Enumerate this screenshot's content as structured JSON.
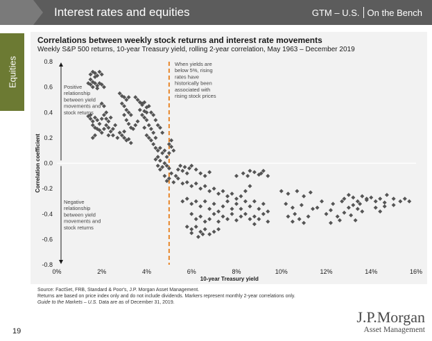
{
  "header": {
    "title": "Interest rates and equities",
    "right_label": "GTM – U.S.",
    "right_sublabel": "On the Bench"
  },
  "side_tab": {
    "label": "Equities"
  },
  "footnote": {
    "line1": "Source: FactSet, FRB, Standard & Poor's, J.P. Morgan Asset Management.",
    "line2": "Returns are based on price index only and do not include dividends. Markers represent monthly 2-year correlations only.",
    "line3_italic": "Guide to the Markets – U.S.",
    "line3_rest": " Data are as of December 31, 2019."
  },
  "page_number": "19",
  "logo": {
    "main": "J.P.Morgan",
    "sub": "Asset Management"
  },
  "colors": {
    "marker": "#555555",
    "threshold": "#e8862a",
    "header": "#5c5c5c",
    "tab": "#6c7a33"
  },
  "chart_data": {
    "type": "scatter",
    "title": "Correlations between weekly stock returns and interest rate movements",
    "subtitle": "Weekly S&P 500 returns, 10-year Treasury yield, rolling 2-year correlation, May 1963 – December 2019",
    "xlabel": "10-year Treasury yield",
    "ylabel": "Correlation coefficient",
    "xlim": [
      0,
      16
    ],
    "ylim": [
      -0.8,
      0.8
    ],
    "xticks": [
      "0%",
      "2%",
      "4%",
      "6%",
      "8%",
      "10%",
      "12%",
      "14%",
      "16%"
    ],
    "yticks": [
      "0.8",
      "0.6",
      "0.4",
      "0.2",
      "0.0",
      "-0.2",
      "-0.4",
      "-0.6",
      "-0.8"
    ],
    "threshold_x": 5,
    "annotations": {
      "threshold": "When yields are below 5%, rising rates have historically been associated with rising stock prices",
      "positive": "Positive relationship between yield movements and stock returns",
      "negative": "Negative relationship between yield movements and stock returns"
    },
    "points": [
      [
        1.5,
        0.7
      ],
      [
        1.6,
        0.72
      ],
      [
        1.7,
        0.71
      ],
      [
        1.8,
        0.69
      ],
      [
        1.9,
        0.72
      ],
      [
        2.0,
        0.7
      ],
      [
        1.7,
        0.68
      ],
      [
        1.5,
        0.66
      ],
      [
        1.4,
        0.63
      ],
      [
        1.5,
        0.62
      ],
      [
        1.6,
        0.64
      ],
      [
        1.7,
        0.63
      ],
      [
        1.8,
        0.61
      ],
      [
        1.9,
        0.63
      ],
      [
        2.0,
        0.62
      ],
      [
        2.1,
        0.6
      ],
      [
        1.6,
        0.6
      ],
      [
        1.8,
        0.59
      ],
      [
        1.4,
        0.37
      ],
      [
        1.5,
        0.35
      ],
      [
        1.5,
        0.38
      ],
      [
        1.6,
        0.33
      ],
      [
        1.7,
        0.36
      ],
      [
        1.8,
        0.34
      ],
      [
        1.9,
        0.31
      ],
      [
        2.0,
        0.35
      ],
      [
        1.6,
        0.3
      ],
      [
        1.7,
        0.28
      ],
      [
        1.8,
        0.27
      ],
      [
        1.9,
        0.26
      ],
      [
        2.0,
        0.24
      ],
      [
        1.7,
        0.22
      ],
      [
        1.6,
        0.2
      ],
      [
        2.0,
        0.47
      ],
      [
        2.1,
        0.45
      ],
      [
        2.2,
        0.4
      ],
      [
        2.1,
        0.38
      ],
      [
        2.2,
        0.35
      ],
      [
        2.3,
        0.33
      ],
      [
        2.4,
        0.36
      ],
      [
        2.2,
        0.3
      ],
      [
        2.3,
        0.28
      ],
      [
        2.4,
        0.25
      ],
      [
        2.5,
        0.27
      ],
      [
        2.6,
        0.3
      ],
      [
        2.5,
        0.22
      ],
      [
        2.7,
        0.2
      ],
      [
        2.8,
        0.24
      ],
      [
        2.9,
        0.22
      ],
      [
        3.0,
        0.25
      ],
      [
        2.1,
        0.27
      ],
      [
        2.3,
        0.22
      ],
      [
        2.8,
        0.55
      ],
      [
        2.9,
        0.53
      ],
      [
        3.0,
        0.52
      ],
      [
        3.1,
        0.5
      ],
      [
        3.2,
        0.52
      ],
      [
        2.9,
        0.47
      ],
      [
        3.0,
        0.45
      ],
      [
        3.1,
        0.42
      ],
      [
        3.2,
        0.4
      ],
      [
        3.3,
        0.38
      ],
      [
        3.0,
        0.38
      ],
      [
        3.1,
        0.34
      ],
      [
        3.2,
        0.31
      ],
      [
        3.3,
        0.28
      ],
      [
        3.4,
        0.27
      ],
      [
        3.5,
        0.3
      ],
      [
        3.6,
        0.33
      ],
      [
        3.0,
        0.2
      ],
      [
        3.1,
        0.18
      ],
      [
        3.2,
        0.19
      ],
      [
        3.3,
        0.16
      ],
      [
        3.5,
        0.52
      ],
      [
        3.6,
        0.5
      ],
      [
        3.7,
        0.48
      ],
      [
        3.8,
        0.46
      ],
      [
        3.9,
        0.48
      ],
      [
        4.0,
        0.44
      ],
      [
        3.7,
        0.42
      ],
      [
        3.8,
        0.38
      ],
      [
        3.9,
        0.36
      ],
      [
        4.0,
        0.34
      ],
      [
        4.1,
        0.3
      ],
      [
        4.2,
        0.27
      ],
      [
        3.9,
        0.28
      ],
      [
        4.0,
        0.22
      ],
      [
        4.1,
        0.2
      ],
      [
        4.2,
        0.18
      ],
      [
        4.3,
        0.24
      ],
      [
        4.4,
        0.2
      ],
      [
        3.8,
        0.47
      ],
      [
        3.9,
        0.41
      ],
      [
        4.0,
        0.4
      ],
      [
        4.1,
        0.45
      ],
      [
        4.2,
        0.4
      ],
      [
        4.3,
        0.38
      ],
      [
        4.4,
        0.34
      ],
      [
        4.5,
        0.3
      ],
      [
        4.6,
        0.28
      ],
      [
        4.7,
        0.24
      ],
      [
        4.3,
        0.15
      ],
      [
        4.4,
        0.12
      ],
      [
        4.5,
        0.1
      ],
      [
        4.6,
        0.12
      ],
      [
        4.7,
        0.08
      ],
      [
        4.8,
        0.1
      ],
      [
        4.9,
        0.05
      ],
      [
        5.0,
        0.08
      ],
      [
        4.5,
        0.05
      ],
      [
        4.6,
        0.02
      ],
      [
        4.8,
        0.0
      ],
      [
        4.9,
        -0.02
      ],
      [
        5.0,
        -0.04
      ],
      [
        4.6,
        -0.05
      ],
      [
        4.7,
        -0.03
      ],
      [
        4.5,
        -0.02
      ],
      [
        4.4,
        0.03
      ],
      [
        5.0,
        0.15
      ],
      [
        5.1,
        0.13
      ],
      [
        5.1,
        0.18
      ],
      [
        5.2,
        0.1
      ],
      [
        4.8,
        -0.1
      ],
      [
        4.9,
        -0.14
      ],
      [
        5.0,
        -0.12
      ],
      [
        5.1,
        -0.08
      ],
      [
        5.2,
        -0.15
      ],
      [
        5.3,
        -0.1
      ],
      [
        5.4,
        -0.05
      ],
      [
        5.5,
        -0.02
      ],
      [
        5.6,
        -0.06
      ],
      [
        5.7,
        -0.03
      ],
      [
        5.8,
        -0.08
      ],
      [
        5.9,
        -0.04
      ],
      [
        6.0,
        -0.02
      ],
      [
        6.2,
        -0.05
      ],
      [
        6.4,
        -0.08
      ],
      [
        6.6,
        -0.1
      ],
      [
        6.8,
        -0.07
      ],
      [
        5.4,
        -0.12
      ],
      [
        5.6,
        -0.16
      ],
      [
        5.8,
        -0.15
      ],
      [
        6.0,
        -0.18
      ],
      [
        6.2,
        -0.16
      ],
      [
        6.4,
        -0.2
      ],
      [
        6.6,
        -0.18
      ],
      [
        6.8,
        -0.22
      ],
      [
        7.0,
        -0.2
      ],
      [
        7.2,
        -0.24
      ],
      [
        7.4,
        -0.22
      ],
      [
        7.6,
        -0.26
      ],
      [
        7.8,
        -0.24
      ],
      [
        8.0,
        -0.28
      ],
      [
        8.2,
        -0.26
      ],
      [
        8.4,
        -0.22
      ],
      [
        8.6,
        -0.18
      ],
      [
        5.6,
        -0.3
      ],
      [
        5.8,
        -0.28
      ],
      [
        6.0,
        -0.32
      ],
      [
        6.2,
        -0.3
      ],
      [
        6.4,
        -0.34
      ],
      [
        6.6,
        -0.3
      ],
      [
        6.8,
        -0.36
      ],
      [
        7.0,
        -0.32
      ],
      [
        7.2,
        -0.38
      ],
      [
        7.4,
        -0.34
      ],
      [
        7.6,
        -0.3
      ],
      [
        7.8,
        -0.36
      ],
      [
        8.0,
        -0.32
      ],
      [
        8.2,
        -0.36
      ],
      [
        8.4,
        -0.3
      ],
      [
        8.6,
        -0.34
      ],
      [
        8.8,
        -0.3
      ],
      [
        9.0,
        -0.36
      ],
      [
        9.2,
        -0.32
      ],
      [
        9.4,
        -0.38
      ],
      [
        6.0,
        -0.4
      ],
      [
        6.2,
        -0.44
      ],
      [
        6.4,
        -0.42
      ],
      [
        6.6,
        -0.46
      ],
      [
        6.8,
        -0.44
      ],
      [
        7.0,
        -0.4
      ],
      [
        7.2,
        -0.46
      ],
      [
        7.4,
        -0.42
      ],
      [
        7.6,
        -0.44
      ],
      [
        7.8,
        -0.4
      ],
      [
        8.0,
        -0.45
      ],
      [
        8.2,
        -0.42
      ],
      [
        8.4,
        -0.4
      ],
      [
        8.6,
        -0.44
      ],
      [
        8.8,
        -0.42
      ],
      [
        9.0,
        -0.44
      ],
      [
        9.2,
        -0.4
      ],
      [
        9.4,
        -0.46
      ],
      [
        8.8,
        -0.48
      ],
      [
        5.8,
        -0.5
      ],
      [
        6.0,
        -0.52
      ],
      [
        6.2,
        -0.5
      ],
      [
        6.4,
        -0.54
      ],
      [
        6.6,
        -0.52
      ],
      [
        6.8,
        -0.56
      ],
      [
        7.0,
        -0.54
      ],
      [
        7.2,
        -0.52
      ],
      [
        6.3,
        -0.58
      ],
      [
        6.5,
        -0.56
      ],
      [
        6.0,
        -0.55
      ],
      [
        8.0,
        -0.1
      ],
      [
        8.3,
        -0.08
      ],
      [
        8.5,
        -0.1
      ],
      [
        8.8,
        -0.07
      ],
      [
        9.0,
        -0.09
      ],
      [
        9.2,
        -0.06
      ],
      [
        9.4,
        -0.1
      ],
      [
        8.6,
        -0.06
      ],
      [
        9.1,
        -0.08
      ],
      [
        10.0,
        -0.22
      ],
      [
        10.3,
        -0.24
      ],
      [
        10.7,
        -0.22
      ],
      [
        11.0,
        -0.26
      ],
      [
        11.3,
        -0.23
      ],
      [
        10.2,
        -0.32
      ],
      [
        10.5,
        -0.35
      ],
      [
        10.9,
        -0.33
      ],
      [
        11.4,
        -0.36
      ],
      [
        11.8,
        -0.3
      ],
      [
        10.3,
        -0.42
      ],
      [
        10.5,
        -0.46
      ],
      [
        10.8,
        -0.44
      ],
      [
        11.0,
        -0.47
      ],
      [
        10.6,
        -0.4
      ],
      [
        11.2,
        -0.42
      ],
      [
        11.6,
        -0.35
      ],
      [
        12.0,
        -0.4
      ],
      [
        12.2,
        -0.37
      ],
      [
        12.5,
        -0.42
      ],
      [
        12.8,
        -0.39
      ],
      [
        12.3,
        -0.32
      ],
      [
        12.7,
        -0.3
      ],
      [
        13.0,
        -0.35
      ],
      [
        13.2,
        -0.33
      ],
      [
        13.4,
        -0.36
      ],
      [
        13.6,
        -0.38
      ],
      [
        12.2,
        -0.47
      ],
      [
        12.6,
        -0.45
      ],
      [
        13.3,
        -0.45
      ],
      [
        13.1,
        -0.41
      ],
      [
        12.8,
        -0.28
      ],
      [
        13.0,
        -0.25
      ],
      [
        13.2,
        -0.27
      ],
      [
        13.4,
        -0.3
      ],
      [
        13.6,
        -0.26
      ],
      [
        13.8,
        -0.29
      ],
      [
        13.5,
        -0.32
      ],
      [
        13.8,
        -0.28
      ],
      [
        14.0,
        -0.27
      ],
      [
        14.2,
        -0.3
      ],
      [
        14.4,
        -0.28
      ],
      [
        14.6,
        -0.31
      ],
      [
        14.2,
        -0.35
      ],
      [
        14.4,
        -0.38
      ],
      [
        14.7,
        -0.25
      ],
      [
        15.0,
        -0.28
      ],
      [
        15.3,
        -0.3
      ],
      [
        15.5,
        -0.28
      ],
      [
        15.7,
        -0.3
      ],
      [
        15.0,
        -0.33
      ],
      [
        14.6,
        -0.34
      ]
    ]
  }
}
